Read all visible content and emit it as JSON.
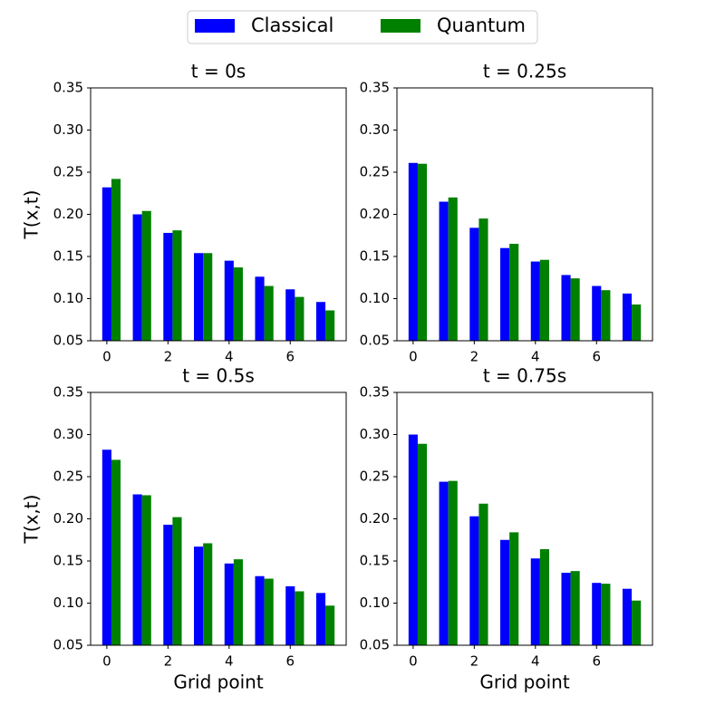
{
  "chart_data": [
    {
      "type": "bar",
      "title": "t = 0s",
      "ylabel": "T(x,t)",
      "x": [
        0,
        1,
        2,
        3,
        4,
        5,
        6,
        7
      ],
      "series": [
        {
          "name": "Classical",
          "color": "#0000ff",
          "values": [
            0.232,
            0.2,
            0.178,
            0.154,
            0.145,
            0.126,
            0.111,
            0.096
          ]
        },
        {
          "name": "Quantum",
          "color": "#008000",
          "values": [
            0.242,
            0.204,
            0.181,
            0.154,
            0.137,
            0.115,
            0.102,
            0.086
          ]
        }
      ],
      "xlim": [
        -0.53,
        7.83
      ],
      "xticks": [
        0,
        2,
        4,
        6
      ],
      "ylim": [
        0.05,
        0.35
      ],
      "yticks": [
        0.05,
        {
          "value": 0.1,
          "label": "0.10"
        },
        0.15,
        {
          "value": 0.2,
          "label": "0.20"
        },
        0.25,
        {
          "value": 0.3,
          "label": "0.30"
        },
        0.35
      ]
    },
    {
      "type": "bar",
      "title": "t = 0.25s",
      "x": [
        0,
        1,
        2,
        3,
        4,
        5,
        6,
        7
      ],
      "series": [
        {
          "color": "#0000ff",
          "values": [
            0.261,
            0.215,
            0.184,
            0.16,
            0.144,
            0.128,
            0.115,
            0.106
          ]
        },
        {
          "color": "#008000",
          "values": [
            0.26,
            0.22,
            0.195,
            0.165,
            0.146,
            0.124,
            0.11,
            0.093
          ]
        }
      ],
      "xlim": [
        -0.53,
        7.83
      ],
      "xticks": [
        0,
        2,
        4,
        6
      ],
      "ylim": [
        0.05,
        0.35
      ],
      "yticks": [
        0.05,
        {
          "value": 0.1,
          "label": "0.10"
        },
        0.15,
        {
          "value": 0.2,
          "label": "0.20"
        },
        0.25,
        {
          "value": 0.3,
          "label": "0.30"
        },
        0.35
      ]
    },
    {
      "type": "bar",
      "title": "t = 0.5s",
      "ylabel": "T(x,t)",
      "xlabel": "Grid point",
      "x": [
        0,
        1,
        2,
        3,
        4,
        5,
        6,
        7
      ],
      "series": [
        {
          "color": "#0000ff",
          "values": [
            0.282,
            0.229,
            0.193,
            0.167,
            0.147,
            0.132,
            0.12,
            0.112
          ]
        },
        {
          "color": "#008000",
          "values": [
            0.27,
            0.228,
            0.202,
            0.171,
            0.152,
            0.129,
            0.114,
            0.097
          ]
        }
      ],
      "xlim": [
        -0.53,
        7.83
      ],
      "xticks": [
        0,
        2,
        4,
        6
      ],
      "ylim": [
        0.05,
        0.35
      ],
      "yticks": [
        0.05,
        {
          "value": 0.1,
          "label": "0.10"
        },
        0.15,
        {
          "value": 0.2,
          "label": "0.20"
        },
        0.25,
        {
          "value": 0.3,
          "label": "0.30"
        },
        0.35
      ]
    },
    {
      "type": "bar",
      "title": "t = 0.75s",
      "xlabel": "Grid point",
      "x": [
        0,
        1,
        2,
        3,
        4,
        5,
        6,
        7
      ],
      "series": [
        {
          "color": "#0000ff",
          "values": [
            0.3,
            0.244,
            0.203,
            0.175,
            0.153,
            0.136,
            0.124,
            0.117
          ]
        },
        {
          "color": "#008000",
          "values": [
            0.289,
            0.245,
            0.218,
            0.184,
            0.164,
            0.138,
            0.123,
            0.103
          ]
        }
      ],
      "xlim": [
        -0.53,
        7.83
      ],
      "xticks": [
        0,
        2,
        4,
        6
      ],
      "ylim": [
        0.05,
        0.35
      ],
      "yticks": [
        0.05,
        {
          "value": 0.1,
          "label": "0.10"
        },
        0.15,
        {
          "value": 0.2,
          "label": "0.20"
        },
        0.25,
        {
          "value": 0.3,
          "label": "0.30"
        },
        0.35
      ]
    }
  ]
}
